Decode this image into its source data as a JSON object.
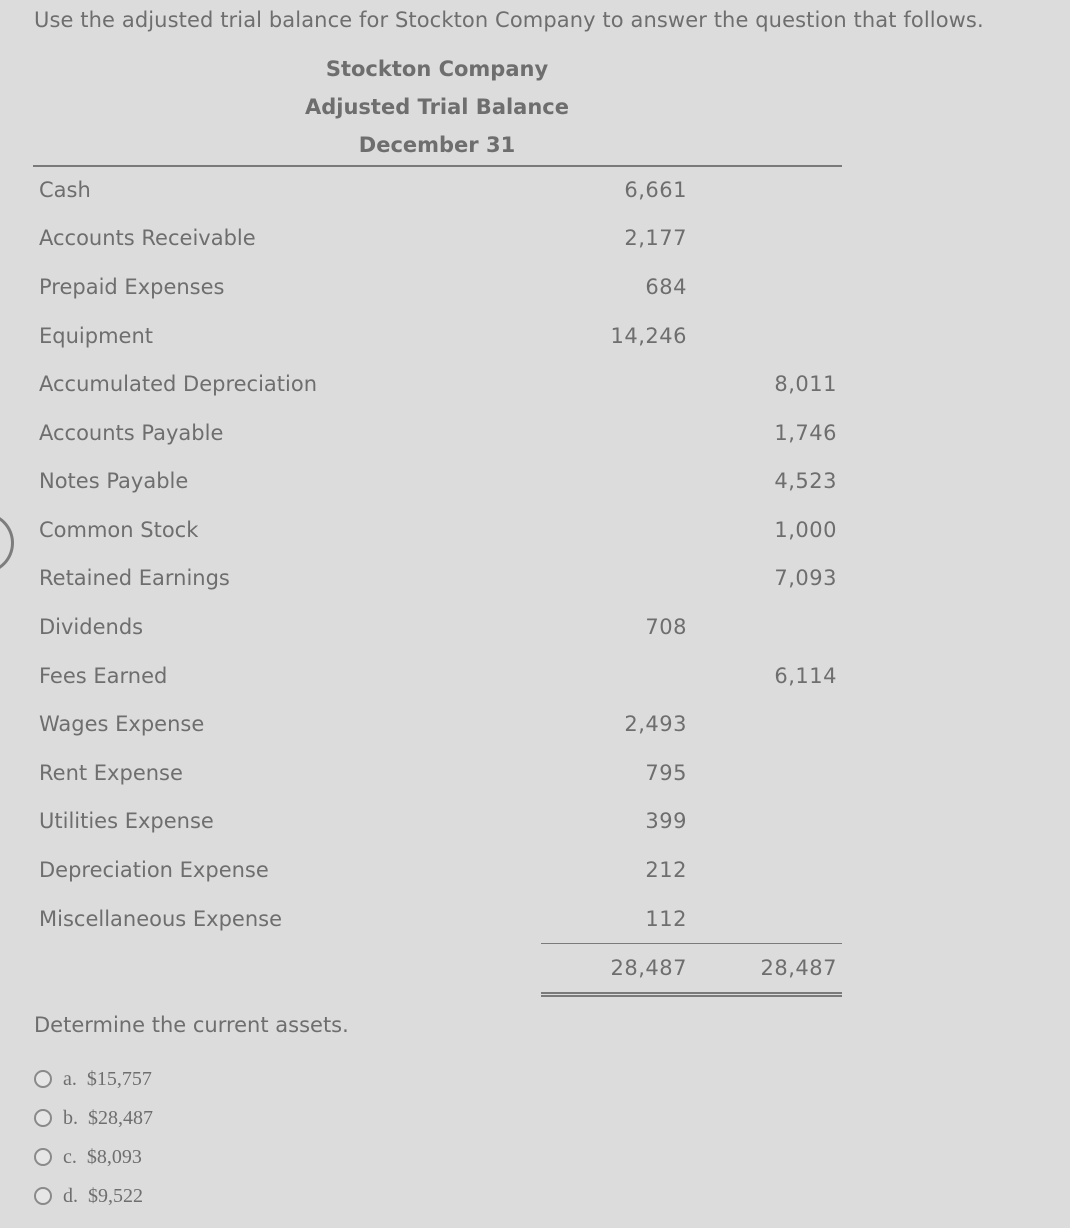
{
  "intro": "Use the adjusted trial balance for Stockton Company to answer the question that follows.",
  "heading": {
    "company": "Stockton Company",
    "statement": "Adjusted Trial Balance",
    "date": "December 31"
  },
  "rows": [
    {
      "account": "Cash",
      "debit": "6,661",
      "credit": ""
    },
    {
      "account": "Accounts Receivable",
      "debit": "2,177",
      "credit": ""
    },
    {
      "account": "Prepaid Expenses",
      "debit": "684",
      "credit": ""
    },
    {
      "account": "Equipment",
      "debit": "14,246",
      "credit": ""
    },
    {
      "account": "Accumulated Depreciation",
      "debit": "",
      "credit": "8,011"
    },
    {
      "account": "Accounts Payable",
      "debit": "",
      "credit": "1,746"
    },
    {
      "account": "Notes Payable",
      "debit": "",
      "credit": "4,523"
    },
    {
      "account": "Common Stock",
      "debit": "",
      "credit": "1,000"
    },
    {
      "account": "Retained Earnings",
      "debit": "",
      "credit": "7,093"
    },
    {
      "account": "Dividends",
      "debit": "708",
      "credit": ""
    },
    {
      "account": "Fees Earned",
      "debit": "",
      "credit": "6,114"
    },
    {
      "account": "Wages Expense",
      "debit": "2,493",
      "credit": ""
    },
    {
      "account": "Rent Expense",
      "debit": "795",
      "credit": ""
    },
    {
      "account": "Utilities Expense",
      "debit": "399",
      "credit": ""
    },
    {
      "account": "Depreciation Expense",
      "debit": "212",
      "credit": ""
    },
    {
      "account": "Miscellaneous Expense",
      "debit": "112",
      "credit": ""
    }
  ],
  "totals": {
    "debit": "28,487",
    "credit": "28,487"
  },
  "question": "Determine the current assets.",
  "options": [
    {
      "letter": "a.",
      "value": "$15,757"
    },
    {
      "letter": "b.",
      "value": "$28,487"
    },
    {
      "letter": "c.",
      "value": "$8,093"
    },
    {
      "letter": "d.",
      "value": "$9,522"
    }
  ]
}
